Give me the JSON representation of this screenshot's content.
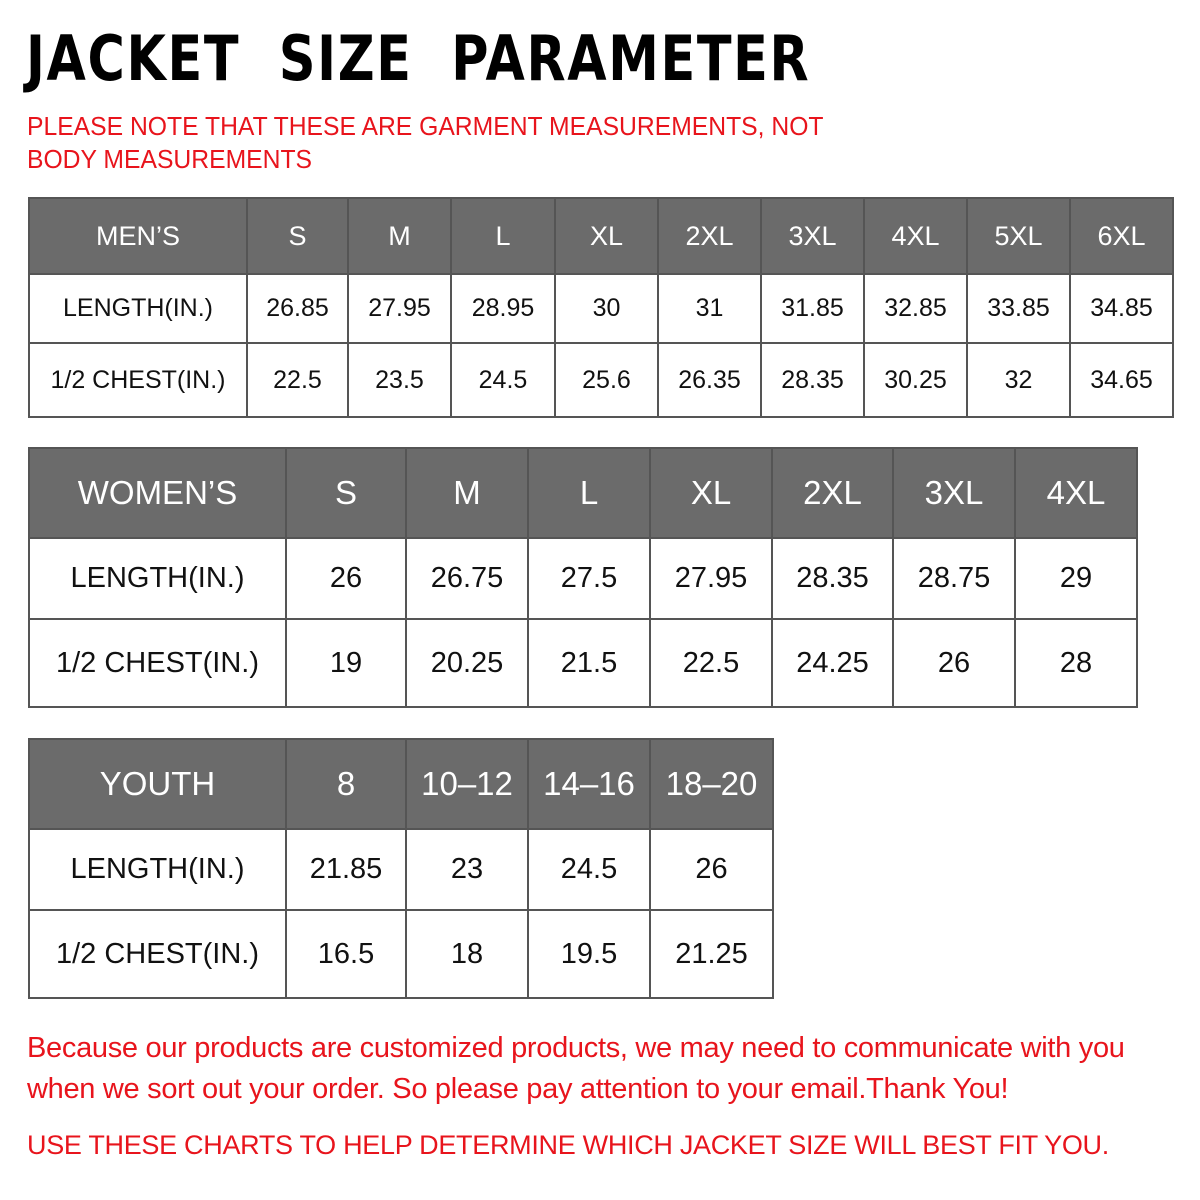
{
  "title": "JACKET  SIZE  PARAMETER",
  "note": "PLEASE NOTE THAT THESE ARE GARMENT MEASUREMENTS, NOT BODY MEASUREMENTS",
  "colors": {
    "header_bg": "#6b6b6b",
    "accent_red": "#e8141c"
  },
  "tables": [
    {
      "id": "men",
      "header": [
        "MEN’S",
        "S",
        "M",
        "L",
        "XL",
        "2XL",
        "3XL",
        "4XL",
        "5XL",
        "6XL"
      ],
      "rows": [
        [
          "LENGTH(IN.)",
          "26.85",
          "27.95",
          "28.95",
          "30",
          "31",
          "31.85",
          "32.85",
          "33.85",
          "34.85"
        ],
        [
          "1/2 CHEST(IN.)",
          "22.5",
          "23.5",
          "24.5",
          "25.6",
          "26.35",
          "28.35",
          "30.25",
          "32",
          "34.65"
        ]
      ]
    },
    {
      "id": "women",
      "header": [
        "WOMEN’S",
        "S",
        "M",
        "L",
        "XL",
        "2XL",
        "3XL",
        "4XL"
      ],
      "rows": [
        [
          "LENGTH(IN.)",
          "26",
          "26.75",
          "27.5",
          "27.95",
          "28.35",
          "28.75",
          "29"
        ],
        [
          "1/2 CHEST(IN.)",
          "19",
          "20.25",
          "21.5",
          "22.5",
          "24.25",
          "26",
          "28"
        ]
      ]
    },
    {
      "id": "youth",
      "header": [
        "YOUTH",
        "8",
        "10–12",
        "14–16",
        "18–20"
      ],
      "rows": [
        [
          "LENGTH(IN.)",
          "21.85",
          "23",
          "24.5",
          "26"
        ],
        [
          "1/2 CHEST(IN.)",
          "16.5",
          "18",
          "19.5",
          "21.25"
        ]
      ]
    }
  ],
  "footer": "Because our products are customized products, we may need to communicate with you when we sort out your order. So please pay attention to your email.Thank You!",
  "footer2": "USE THESE CHARTS TO HELP DETERMINE WHICH JACKET SIZE WILL BEST FIT YOU."
}
